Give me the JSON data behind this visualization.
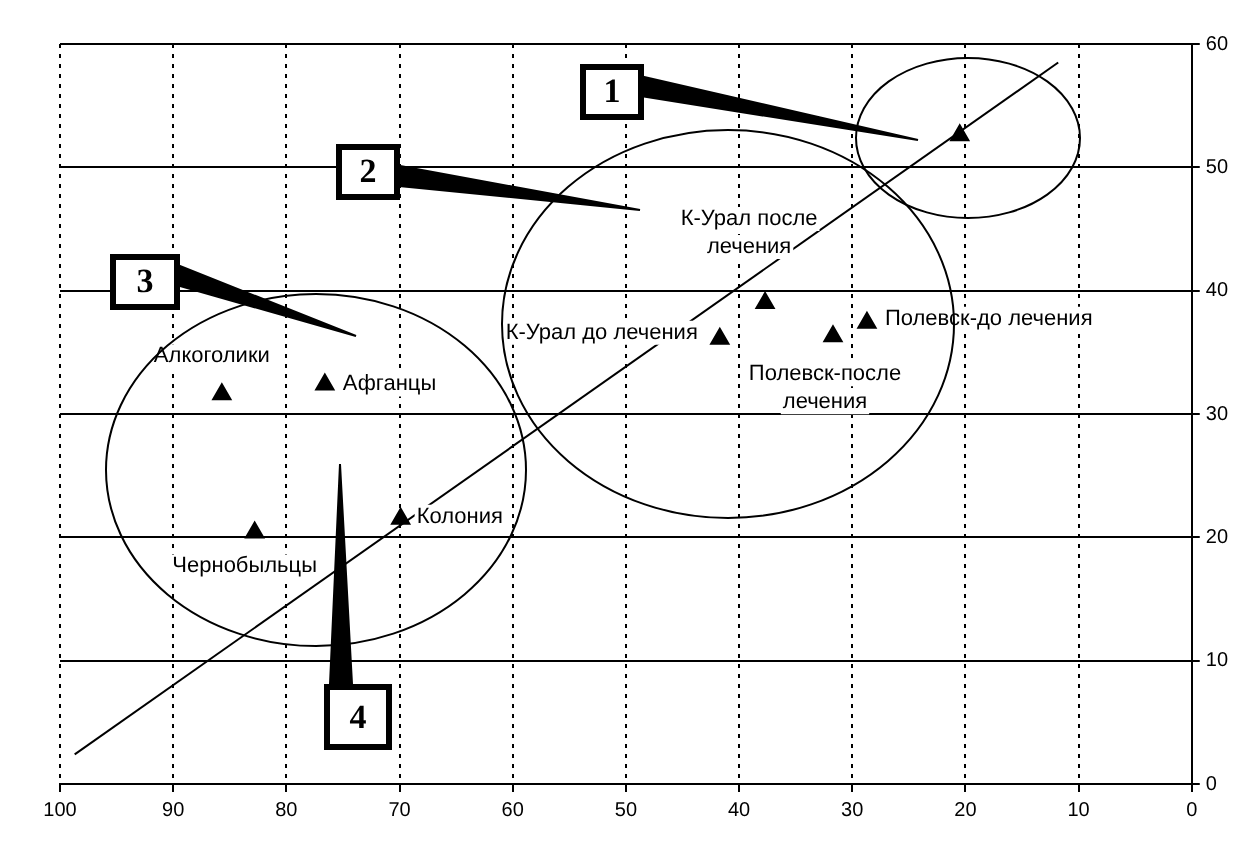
{
  "chart_data": {
    "type": "scatter",
    "xlim": [
      100,
      0
    ],
    "xticks": [
      100,
      90,
      80,
      70,
      60,
      50,
      40,
      30,
      20,
      10,
      0
    ],
    "ylim": [
      0,
      60
    ],
    "yticks": [
      0,
      10,
      20,
      30,
      40,
      50,
      60
    ],
    "grid": true,
    "legend": false,
    "marker": "triangle",
    "series": [
      {
        "color": "#000000",
        "x": [
          85.7,
          76.6,
          82.8,
          69.9,
          41.7,
          37.7,
          31.7,
          28.7,
          20.5
        ],
        "values": [
          31.6,
          32.4,
          20.4,
          21.5,
          36.1,
          39.0,
          36.3,
          37.4,
          52.6
        ]
      },
      {
        "type": "line",
        "color": "#000000",
        "marker": "none",
        "x": [
          98.7,
          11.8
        ],
        "values": [
          2.4,
          58.5
        ]
      }
    ],
    "annotations": [
      "1",
      "2",
      "3",
      "4",
      {
        "text": "Алкоголики",
        "x": 85.7,
        "y": 31.6
      },
      {
        "text": "Афганцы",
        "x": 76.6,
        "y": 32.4
      },
      {
        "text": "Чернобыльцы",
        "x": 82.8,
        "y": 20.4
      },
      {
        "text": "Колония",
        "x": 69.9,
        "y": 21.5
      },
      {
        "text": "К-Урал до лечения",
        "x": 41.7,
        "y": 36.1
      },
      {
        "text": "К-Урал после лечения",
        "x": 37.7,
        "y": 39.0
      },
      {
        "text": "Полевск-после лечения",
        "x": 31.7,
        "y": 36.3
      },
      {
        "text": "Полевск-до лечения",
        "x": 28.7,
        "y": 37.4
      }
    ]
  }
}
